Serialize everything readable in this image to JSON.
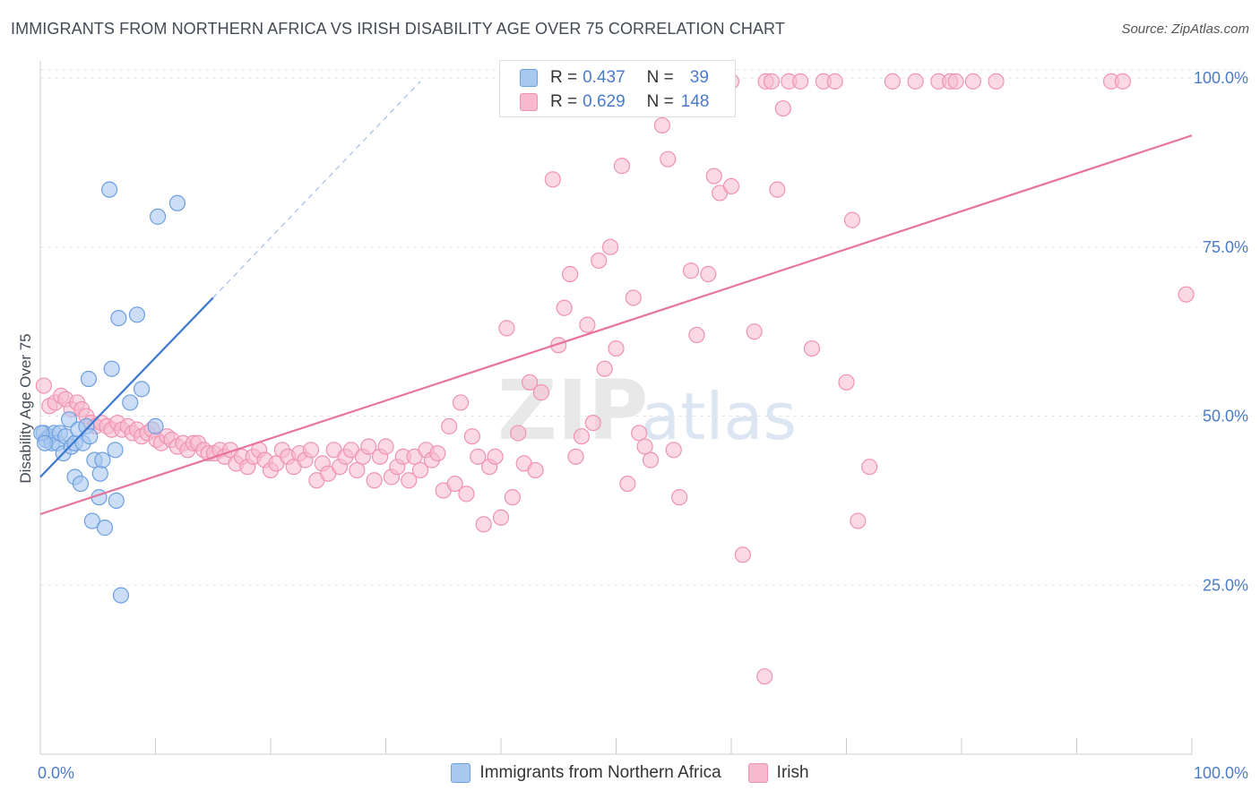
{
  "title": "IMMIGRANTS FROM NORTHERN AFRICA VS IRISH DISABILITY AGE OVER 75 CORRELATION CHART",
  "source": "Source: ZipAtlas.com",
  "watermark": {
    "zip": "ZIP",
    "atlas": "atlas"
  },
  "legend": {
    "r_label": "R =",
    "n_label": "N =",
    "series1": {
      "r": "0.437",
      "n": "39"
    },
    "series2": {
      "r": "0.629",
      "n": "148"
    }
  },
  "bottom_legend": {
    "series1": "Immigrants from Northern Africa",
    "series2": "Irish"
  },
  "colors": {
    "blue_fill": "#a9c8ef",
    "blue_stroke": "#6d9ee0",
    "blue_line": "#3b78d0",
    "pink_fill": "#f7b9ce",
    "pink_stroke": "#ef92b0",
    "pink_line": "#e8739c",
    "tick_text": "#4a7cc9",
    "grid": "#e6e6e6"
  },
  "chart_data": {
    "type": "scatter",
    "title": "IMMIGRANTS FROM NORTHERN AFRICA VS IRISH DISABILITY AGE OVER 75 CORRELATION CHART",
    "xlabel": "",
    "ylabel": "Disability Age Over 75",
    "xlim": [
      0,
      100
    ],
    "ylim": [
      0,
      102
    ],
    "x_tick_labels": [
      "0.0%",
      "100.0%"
    ],
    "y_tick_labels": [
      "25.0%",
      "50.0%",
      "75.0%",
      "100.0%"
    ],
    "y_ticks": [
      25,
      50,
      75,
      100
    ],
    "series": [
      {
        "name": "Immigrants from Northern Africa",
        "r": 0.437,
        "n": 39,
        "trend": {
          "x0": 0,
          "y0": 41,
          "x1": 15,
          "y1": 67.5,
          "dash_to_x": 33,
          "dash_to_y": 99.5
        },
        "points": [
          [
            0.3,
            47.5
          ],
          [
            0.5,
            46.5
          ],
          [
            0.8,
            47
          ],
          [
            1,
            46
          ],
          [
            1.2,
            47.5
          ],
          [
            1.5,
            46
          ],
          [
            1.7,
            47.5
          ],
          [
            2,
            44.5
          ],
          [
            2.2,
            47
          ],
          [
            2.5,
            49.5
          ],
          [
            2.7,
            45.5
          ],
          [
            3,
            46
          ],
          [
            3,
            41
          ],
          [
            3.3,
            48
          ],
          [
            3.5,
            40
          ],
          [
            3.7,
            46
          ],
          [
            4,
            48.5
          ],
          [
            4.2,
            55.5
          ],
          [
            4.3,
            47
          ],
          [
            4.5,
            34.5
          ],
          [
            4.7,
            43.5
          ],
          [
            5.1,
            38
          ],
          [
            5.2,
            41.5
          ],
          [
            5.4,
            43.5
          ],
          [
            5.6,
            33.5
          ],
          [
            6,
            83.5
          ],
          [
            6.2,
            57
          ],
          [
            6.5,
            45
          ],
          [
            6.6,
            37.5
          ],
          [
            6.8,
            64.5
          ],
          [
            7,
            23.5
          ],
          [
            7.8,
            52
          ],
          [
            8.4,
            65
          ],
          [
            8.8,
            54
          ],
          [
            10,
            48.5
          ],
          [
            10.2,
            79.5
          ],
          [
            11.9,
            81.5
          ],
          [
            0.1,
            47.5
          ],
          [
            0.4,
            46
          ]
        ]
      },
      {
        "name": "Irish",
        "r": 0.629,
        "n": 148,
        "trend": {
          "x0": 0,
          "y0": 35.5,
          "x1": 100,
          "y1": 91.5
        },
        "points": [
          [
            0.3,
            54.5
          ],
          [
            0.8,
            51.5
          ],
          [
            1.3,
            52
          ],
          [
            1.8,
            53
          ],
          [
            2.2,
            52.5
          ],
          [
            2.7,
            51
          ],
          [
            3.2,
            52
          ],
          [
            3.6,
            51
          ],
          [
            4,
            50
          ],
          [
            4.4,
            49
          ],
          [
            4.8,
            48.5
          ],
          [
            5.3,
            49
          ],
          [
            5.8,
            48.5
          ],
          [
            6.2,
            48
          ],
          [
            6.7,
            49
          ],
          [
            7.1,
            48
          ],
          [
            7.6,
            48.5
          ],
          [
            8,
            47.5
          ],
          [
            8.4,
            48
          ],
          [
            8.8,
            47
          ],
          [
            9.3,
            47.5
          ],
          [
            9.7,
            48
          ],
          [
            10.1,
            46.5
          ],
          [
            10.5,
            46
          ],
          [
            11,
            47
          ],
          [
            11.4,
            46.5
          ],
          [
            11.9,
            45.5
          ],
          [
            12.4,
            46
          ],
          [
            12.8,
            45
          ],
          [
            13.3,
            46
          ],
          [
            13.7,
            46
          ],
          [
            14.2,
            45
          ],
          [
            14.6,
            44.5
          ],
          [
            15.1,
            44.5
          ],
          [
            15.6,
            45
          ],
          [
            16.0,
            44
          ],
          [
            16.5,
            45
          ],
          [
            17,
            43
          ],
          [
            17.5,
            44
          ],
          [
            18,
            42.5
          ],
          [
            18.5,
            44
          ],
          [
            19,
            45
          ],
          [
            19.5,
            43.5
          ],
          [
            20,
            42
          ],
          [
            20.5,
            43
          ],
          [
            21,
            45
          ],
          [
            21.5,
            44
          ],
          [
            22,
            42.5
          ],
          [
            22.5,
            44.5
          ],
          [
            23,
            43.5
          ],
          [
            23.5,
            45
          ],
          [
            24,
            40.5
          ],
          [
            24.5,
            43
          ],
          [
            25,
            41.5
          ],
          [
            25.5,
            45
          ],
          [
            26,
            42.5
          ],
          [
            26.5,
            44
          ],
          [
            27,
            45
          ],
          [
            27.5,
            42
          ],
          [
            28,
            44
          ],
          [
            28.5,
            45.5
          ],
          [
            29,
            40.5
          ],
          [
            29.5,
            44
          ],
          [
            30,
            45.5
          ],
          [
            30.5,
            41
          ],
          [
            31,
            42.5
          ],
          [
            31.5,
            44
          ],
          [
            32,
            40.5
          ],
          [
            32.5,
            44
          ],
          [
            33,
            42
          ],
          [
            33.5,
            45
          ],
          [
            34,
            43.5
          ],
          [
            34.5,
            44.5
          ],
          [
            35,
            39
          ],
          [
            35.5,
            48.5
          ],
          [
            36,
            40
          ],
          [
            36.5,
            52
          ],
          [
            37,
            38.5
          ],
          [
            37.5,
            47
          ],
          [
            38,
            44
          ],
          [
            38.5,
            34
          ],
          [
            39,
            42.5
          ],
          [
            39.5,
            44
          ],
          [
            40,
            35
          ],
          [
            40.5,
            63
          ],
          [
            41,
            38
          ],
          [
            41.5,
            47.5
          ],
          [
            42,
            43
          ],
          [
            42.5,
            55
          ],
          [
            43,
            42
          ],
          [
            43.5,
            53.5
          ],
          [
            44.5,
            85
          ],
          [
            45,
            60.5
          ],
          [
            45.5,
            66
          ],
          [
            46,
            71
          ],
          [
            46.5,
            44
          ],
          [
            47,
            47
          ],
          [
            47.5,
            63.5
          ],
          [
            48,
            49
          ],
          [
            48.5,
            73
          ],
          [
            49,
            57
          ],
          [
            49.5,
            75
          ],
          [
            50,
            60
          ],
          [
            50.5,
            87
          ],
          [
            51,
            40
          ],
          [
            51.5,
            67.5
          ],
          [
            52,
            47.5
          ],
          [
            52.5,
            45.5
          ],
          [
            53,
            43.5
          ],
          [
            54,
            93
          ],
          [
            54.5,
            88
          ],
          [
            55,
            45
          ],
          [
            55.5,
            38
          ],
          [
            56.5,
            71.5
          ],
          [
            57,
            62
          ],
          [
            58,
            71
          ],
          [
            58.5,
            85.5
          ],
          [
            59,
            83
          ],
          [
            60,
            84
          ],
          [
            61,
            29.5
          ],
          [
            62,
            62.5
          ],
          [
            63,
            99.5
          ],
          [
            63.5,
            99.5
          ],
          [
            64,
            83.5
          ],
          [
            64.5,
            95.5
          ],
          [
            65,
            99.5
          ],
          [
            66,
            99.5
          ],
          [
            67,
            60
          ],
          [
            68,
            99.5
          ],
          [
            69,
            99.5
          ],
          [
            70,
            55
          ],
          [
            70.5,
            79
          ],
          [
            71,
            34.5
          ],
          [
            72,
            42.5
          ],
          [
            74,
            99.5
          ],
          [
            76,
            99.5
          ],
          [
            78,
            99.5
          ],
          [
            79,
            99.5
          ],
          [
            79.5,
            99.5
          ],
          [
            81,
            99.5
          ],
          [
            83,
            99.5
          ],
          [
            93,
            99.5
          ],
          [
            94,
            99.5
          ],
          [
            99.5,
            68
          ],
          [
            55,
            99.5
          ],
          [
            57.5,
            99.5
          ],
          [
            60,
            99.5
          ],
          [
            62.9,
            11.5
          ]
        ]
      }
    ]
  }
}
